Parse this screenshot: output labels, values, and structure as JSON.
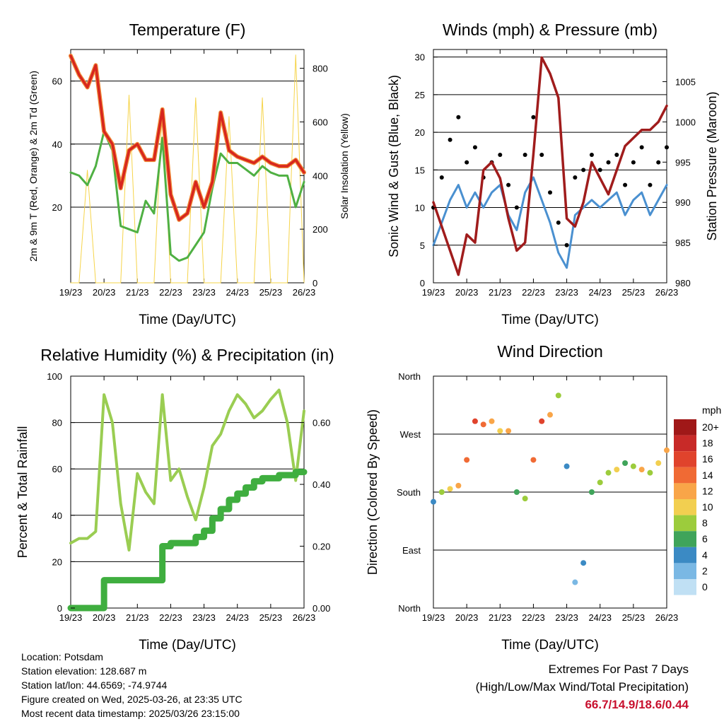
{
  "colors": {
    "temp_red": "#d7261e",
    "temp_orange": "#f08c3a",
    "dewpoint_green": "#4fb043",
    "solar_yellow": "#f6d44a",
    "wind_blue": "#4a90d0",
    "gust_black": "#000000",
    "pressure_maroon": "#a01c1c",
    "rh_lightgreen": "#9acd52",
    "precip_green": "#3fae3f",
    "extremes_red": "#c8102e"
  },
  "x_ticks": [
    "19/23",
    "20/23",
    "21/23",
    "22/23",
    "23/23",
    "24/23",
    "25/23",
    "26/23"
  ],
  "chart_data": [
    {
      "id": "temperature",
      "type": "line",
      "title": "Temperature (F)",
      "xlabel": "Time (Day/UTC)",
      "ylabel": "2m & 9m T (Red, Orange) & 2m Td (Green)",
      "ylabel_right": "Solar Insolation (Yellow)",
      "ylim": [
        -4,
        70
      ],
      "yticks": [
        20,
        40,
        60
      ],
      "ylim_right": [
        0,
        870
      ],
      "yticks_right": [
        0,
        200,
        400,
        600,
        800
      ],
      "x": [
        0,
        0.25,
        0.5,
        0.75,
        1.0,
        1.25,
        1.5,
        1.75,
        2.0,
        2.25,
        2.5,
        2.75,
        3.0,
        3.25,
        3.5,
        3.75,
        4.0,
        4.25,
        4.5,
        4.75,
        5.0,
        5.25,
        5.5,
        5.75,
        6.0,
        6.25,
        6.5,
        6.75,
        7.0
      ],
      "series": [
        {
          "name": "2m T",
          "values": [
            68,
            62,
            58,
            65,
            44,
            40,
            26,
            38,
            40,
            35,
            35,
            51,
            24,
            16,
            18,
            28,
            20,
            28,
            50,
            38,
            36,
            35,
            34,
            36,
            34,
            33,
            33,
            35,
            31
          ]
        },
        {
          "name": "9m T",
          "values": [
            68,
            62,
            58,
            65,
            44,
            40,
            26,
            38,
            40,
            35,
            35,
            51,
            24,
            16,
            18,
            28,
            20,
            28,
            50,
            38,
            36,
            35,
            34,
            36,
            34,
            33,
            33,
            35,
            31
          ]
        },
        {
          "name": "2m Td",
          "values": [
            31,
            30,
            27,
            33,
            44,
            38,
            14,
            13,
            12,
            22,
            18,
            42,
            5,
            3,
            4,
            8,
            12,
            26,
            37,
            34,
            34,
            32,
            30,
            33,
            31,
            30,
            30,
            20,
            28
          ]
        },
        {
          "name": "Solar Insolation",
          "values": [
            0,
            0,
            420,
            0,
            0,
            0,
            0,
            700,
            0,
            0,
            0,
            650,
            0,
            0,
            0,
            690,
            0,
            0,
            0,
            620,
            0,
            0,
            0,
            690,
            0,
            0,
            0,
            850,
            0
          ]
        }
      ]
    },
    {
      "id": "winds",
      "type": "line",
      "title": "Winds (mph) & Pressure (mb)",
      "xlabel": "Time (Day/UTC)",
      "ylabel": "Sonic Wind & Gust (Blue, Black)",
      "ylabel_right": "Station Pressure (Maroon)",
      "ylim": [
        0,
        31
      ],
      "yticks": [
        0,
        5,
        10,
        15,
        20,
        25,
        30
      ],
      "ylim_right": [
        980,
        1009
      ],
      "yticks_right": [
        980,
        985,
        990,
        995,
        1000,
        1005
      ],
      "x": [
        0,
        0.25,
        0.5,
        0.75,
        1.0,
        1.25,
        1.5,
        1.75,
        2.0,
        2.25,
        2.5,
        2.75,
        3.0,
        3.25,
        3.5,
        3.75,
        4.0,
        4.25,
        4.5,
        4.75,
        5.0,
        5.25,
        5.5,
        5.75,
        6.0,
        6.25,
        6.5,
        6.75,
        7.0
      ],
      "series": [
        {
          "name": "Sonic Wind",
          "values": [
            5,
            8,
            11,
            13,
            10,
            12,
            10,
            12,
            13,
            9,
            7,
            12,
            14,
            11,
            8,
            4,
            2,
            9,
            10,
            11,
            10,
            11,
            12,
            9,
            11,
            12,
            9,
            11,
            13
          ]
        },
        {
          "name": "Gust",
          "values": [
            10,
            14,
            19,
            22,
            16,
            18,
            14,
            16,
            17,
            13,
            10,
            17,
            22,
            17,
            12,
            8,
            5,
            14,
            15,
            17,
            15,
            16,
            17,
            13,
            16,
            18,
            13,
            16,
            18
          ]
        },
        {
          "name": "Station Pressure",
          "values": [
            990,
            987,
            984,
            981,
            986,
            985,
            994,
            995,
            993,
            988,
            984,
            985,
            996,
            1008,
            1006,
            1003,
            988,
            987,
            990,
            995,
            993,
            991,
            994,
            997,
            998,
            999,
            999,
            1000,
            1002
          ]
        }
      ]
    },
    {
      "id": "humidity",
      "type": "line",
      "title": "Relative Humidity (%) & Precipitation (in)",
      "xlabel": "Time (Day/UTC)",
      "ylabel": "Percent & Total Rainfall",
      "ylim": [
        0,
        100
      ],
      "yticks": [
        0,
        20,
        40,
        60,
        80,
        100
      ],
      "ylim_right": [
        0,
        0.75
      ],
      "yticks_right": [
        "0.00",
        "0.20",
        "0.40",
        "0.60"
      ],
      "x": [
        0,
        0.25,
        0.5,
        0.75,
        1.0,
        1.25,
        1.5,
        1.75,
        2.0,
        2.25,
        2.5,
        2.75,
        3.0,
        3.25,
        3.5,
        3.75,
        4.0,
        4.25,
        4.5,
        4.75,
        5.0,
        5.25,
        5.5,
        5.75,
        6.0,
        6.25,
        6.5,
        6.75,
        7.0
      ],
      "series": [
        {
          "name": "Relative Humidity",
          "values": [
            28,
            30,
            30,
            33,
            92,
            80,
            45,
            25,
            58,
            50,
            45,
            92,
            55,
            60,
            48,
            38,
            52,
            70,
            75,
            85,
            92,
            88,
            82,
            85,
            90,
            94,
            80,
            55,
            85
          ]
        },
        {
          "name": "Total Precipitation",
          "values": [
            0,
            0,
            0,
            0,
            0.09,
            0.09,
            0.09,
            0.09,
            0.09,
            0.09,
            0.09,
            0.2,
            0.21,
            0.21,
            0.21,
            0.23,
            0.25,
            0.29,
            0.32,
            0.35,
            0.37,
            0.39,
            0.41,
            0.42,
            0.42,
            0.43,
            0.43,
            0.44,
            0.44
          ]
        }
      ]
    },
    {
      "id": "direction",
      "type": "scatter",
      "title": "Wind Direction",
      "xlabel": "Time (Day/UTC)",
      "ylabel": "Direction (Colored By Speed)",
      "ylim": [
        0,
        360
      ],
      "yticks": [
        "North",
        "East",
        "South",
        "West",
        "North"
      ],
      "legend": {
        "title": "mph",
        "placement": "right",
        "labels": [
          "20+",
          "18",
          "16",
          "14",
          "12",
          "10",
          "8",
          "6",
          "4",
          "2",
          "0"
        ],
        "colors": [
          "#a01818",
          "#c82a28",
          "#e0432c",
          "#f06a34",
          "#f9a548",
          "#f2cf50",
          "#9ccc3c",
          "#3fa45a",
          "#3b8ac4",
          "#7ab8e4",
          "#c0e0f4"
        ]
      },
      "x": [
        0,
        0.25,
        0.5,
        0.75,
        1.0,
        1.25,
        1.5,
        1.75,
        2.0,
        2.25,
        2.5,
        2.75,
        3.0,
        3.25,
        3.5,
        3.75,
        4.0,
        4.25,
        4.5,
        4.75,
        5.0,
        5.25,
        5.5,
        5.75,
        6.0,
        6.25,
        6.5,
        6.75,
        7.0
      ],
      "series": [
        {
          "name": "Direction",
          "values": [
            165,
            180,
            185,
            190,
            230,
            290,
            285,
            290,
            275,
            275,
            180,
            170,
            230,
            290,
            300,
            330,
            220,
            40,
            70,
            180,
            195,
            210,
            215,
            225,
            220,
            215,
            210,
            225,
            245
          ]
        },
        {
          "name": "Speed",
          "values": [
            4,
            8,
            10,
            12,
            14,
            16,
            14,
            12,
            10,
            12,
            6,
            8,
            14,
            16,
            12,
            8,
            4,
            2,
            3,
            6,
            8,
            8,
            10,
            6,
            8,
            12,
            8,
            10,
            12
          ]
        }
      ]
    }
  ],
  "footer": {
    "location": "Location: Potsdam",
    "elevation": "Station elevation: 128.687 m",
    "latlon": "Station lat/lon: 44.6569; -74.9744",
    "created": "Figure created on Wed, 2025-03-26, at 23:35 UTC",
    "recent": "Most recent data timestamp: 2025/03/26 23:15:00",
    "extremes_title": "Extremes For Past 7 Days",
    "extremes_subtitle": "(High/Low/Max Wind/Total Precipitation)",
    "extremes_values": "66.7/14.9/18.6/0.44"
  }
}
